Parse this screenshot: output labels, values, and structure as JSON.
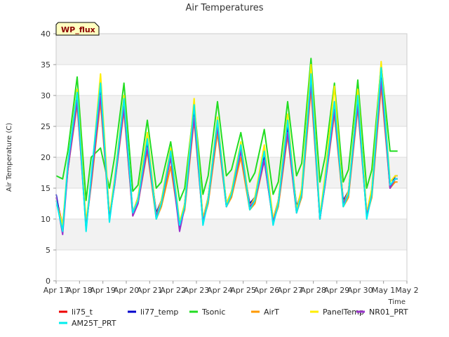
{
  "chart_data": {
    "type": "line",
    "title": "Air Temperatures",
    "ylabel": "Air Temperature (C)",
    "xlabel": "Time",
    "badge": "WP_flux",
    "ylim": [
      0,
      40
    ],
    "yticks": [
      0,
      5,
      10,
      15,
      20,
      25,
      30,
      35,
      40
    ],
    "xlim": [
      0,
      15
    ],
    "xticks": [
      {
        "day": 0,
        "label": "Apr 17"
      },
      {
        "day": 1,
        "label": "Apr 18"
      },
      {
        "day": 2,
        "label": "Apr 19"
      },
      {
        "day": 3,
        "label": "Apr 20"
      },
      {
        "day": 4,
        "label": "Apr 21"
      },
      {
        "day": 5,
        "label": "Apr 22"
      },
      {
        "day": 6,
        "label": "Apr 23"
      },
      {
        "day": 7,
        "label": "Apr 24"
      },
      {
        "day": 8,
        "label": "Apr 25"
      },
      {
        "day": 9,
        "label": "Apr 26"
      },
      {
        "day": 10,
        "label": "Apr 27"
      },
      {
        "day": 11,
        "label": "Apr 28"
      },
      {
        "day": 12,
        "label": "Apr 29"
      },
      {
        "day": 13,
        "label": "Apr 30"
      },
      {
        "day": 14,
        "label": "May 1"
      },
      {
        "day": 15,
        "label": "May 2"
      }
    ],
    "grid": true,
    "legend_position": "bottom",
    "series": [
      {
        "name": "li75_t",
        "color": "#ee0000",
        "x": [
          0.0,
          0.28,
          0.5,
          0.9,
          1.28,
          1.5,
          1.9,
          2.28,
          2.5,
          2.9,
          3.28,
          3.5,
          3.9,
          4.28,
          4.5,
          4.9,
          5.28,
          5.5,
          5.9,
          6.28,
          6.5,
          6.9,
          7.28,
          7.5,
          7.9,
          8.28,
          8.5,
          8.9,
          9.28,
          9.5,
          9.9,
          10.28,
          10.5,
          10.9,
          11.28,
          11.5,
          11.9,
          12.28,
          12.5,
          12.9,
          13.28,
          13.5,
          13.9,
          14.28,
          14.5,
          14.6
        ],
        "y": [
          13.5,
          9.0,
          18.0,
          29.5,
          9.0,
          16.0,
          31.0,
          10.5,
          16.0,
          28.5,
          11.0,
          13.0,
          22.0,
          10.5,
          12.5,
          20.0,
          9.0,
          12.0,
          27.0,
          9.5,
          13.0,
          25.0,
          12.0,
          14.0,
          21.5,
          12.0,
          13.0,
          20.0,
          10.0,
          12.5,
          24.5,
          11.5,
          14.0,
          33.0,
          10.0,
          16.0,
          28.5,
          12.5,
          14.0,
          29.0,
          10.5,
          14.0,
          33.5,
          15.0,
          16.5,
          16.5
        ]
      },
      {
        "name": "li77_temp",
        "color": "#0000cc",
        "x": [
          0.0,
          0.28,
          0.5,
          0.9,
          1.28,
          1.5,
          1.9,
          2.28,
          2.5,
          2.9,
          3.28,
          3.5,
          3.9,
          4.28,
          4.5,
          4.9,
          5.28,
          5.5,
          5.9,
          6.28,
          6.5,
          6.9,
          7.28,
          7.5,
          7.9,
          8.28,
          8.5,
          8.9,
          9.28,
          9.5,
          9.9,
          10.28,
          10.5,
          10.9,
          11.28,
          11.5,
          11.9,
          12.28,
          12.5,
          12.9,
          13.28,
          13.5,
          13.9,
          14.28,
          14.5,
          14.6
        ],
        "y": [
          14.0,
          8.0,
          18.5,
          30.5,
          8.5,
          16.5,
          31.5,
          10.0,
          16.0,
          29.0,
          11.0,
          13.5,
          22.5,
          11.0,
          13.0,
          20.5,
          8.5,
          12.5,
          27.5,
          10.0,
          13.5,
          25.5,
          12.5,
          14.5,
          21.0,
          12.5,
          13.5,
          20.0,
          10.0,
          13.0,
          25.0,
          12.0,
          14.5,
          33.5,
          10.0,
          16.5,
          28.0,
          13.0,
          14.5,
          29.5,
          11.0,
          14.5,
          34.0,
          15.0,
          17.0,
          17.0
        ]
      },
      {
        "name": "Tsonic",
        "color": "#22dd22",
        "x": [
          0.0,
          0.28,
          0.5,
          0.9,
          1.28,
          1.5,
          1.9,
          2.28,
          2.5,
          2.9,
          3.28,
          3.5,
          3.9,
          4.28,
          4.5,
          4.9,
          5.28,
          5.5,
          5.9,
          6.28,
          6.5,
          6.9,
          7.28,
          7.5,
          7.9,
          8.28,
          8.5,
          8.9,
          9.28,
          9.5,
          9.9,
          10.28,
          10.5,
          10.9,
          11.28,
          11.5,
          11.9,
          12.28,
          12.5,
          12.9,
          13.28,
          13.5,
          13.9,
          14.28,
          14.5,
          14.6
        ],
        "y": [
          17.0,
          16.5,
          21.0,
          33.0,
          13.0,
          20.0,
          21.5,
          15.0,
          20.0,
          32.0,
          14.5,
          15.5,
          26.0,
          15.0,
          16.0,
          22.5,
          13.0,
          15.0,
          28.5,
          14.0,
          17.0,
          29.0,
          17.0,
          18.0,
          24.0,
          16.0,
          17.5,
          24.5,
          14.0,
          16.0,
          29.0,
          17.0,
          19.0,
          36.0,
          16.0,
          20.0,
          32.0,
          16.0,
          18.0,
          32.5,
          15.0,
          18.0,
          35.0,
          21.0,
          21.0,
          21.0
        ]
      },
      {
        "name": "AirT",
        "color": "#ff9900",
        "x": [
          0.0,
          0.28,
          0.5,
          0.9,
          1.28,
          1.5,
          1.9,
          2.28,
          2.5,
          2.9,
          3.28,
          3.5,
          3.9,
          4.28,
          4.5,
          4.9,
          5.28,
          5.5,
          5.9,
          6.28,
          6.5,
          6.9,
          7.28,
          7.5,
          7.9,
          8.28,
          8.5,
          8.9,
          9.28,
          9.5,
          9.9,
          10.28,
          10.5,
          10.9,
          11.28,
          11.5,
          11.9,
          12.28,
          12.5,
          12.9,
          13.28,
          13.5,
          13.9,
          14.28,
          14.5,
          14.6
        ],
        "y": [
          13.0,
          8.5,
          18.0,
          28.5,
          9.0,
          15.5,
          29.0,
          10.0,
          15.5,
          27.5,
          10.5,
          12.5,
          21.0,
          10.0,
          12.0,
          18.5,
          9.0,
          11.5,
          26.0,
          9.5,
          12.5,
          24.0,
          12.0,
          13.5,
          20.0,
          11.5,
          12.5,
          19.5,
          9.5,
          12.0,
          23.5,
          11.0,
          13.5,
          31.0,
          10.0,
          15.5,
          27.0,
          12.0,
          13.5,
          28.0,
          10.5,
          13.5,
          31.5,
          15.0,
          16.0,
          16.0
        ]
      },
      {
        "name": "PanelTemp",
        "color": "#ffee00",
        "x": [
          0.0,
          0.28,
          0.5,
          0.9,
          1.28,
          1.5,
          1.9,
          2.28,
          2.5,
          2.9,
          3.28,
          3.5,
          3.9,
          4.28,
          4.5,
          4.9,
          5.28,
          5.5,
          5.9,
          6.28,
          6.5,
          6.9,
          7.28,
          7.5,
          7.9,
          8.28,
          8.5,
          8.9,
          9.28,
          9.5,
          9.9,
          10.28,
          10.5,
          10.9,
          11.28,
          11.5,
          11.9,
          12.28,
          12.5,
          12.9,
          13.28,
          13.5,
          13.9,
          14.28,
          14.5,
          14.6
        ],
        "y": [
          13.0,
          9.0,
          19.0,
          31.0,
          9.5,
          16.5,
          33.5,
          10.5,
          16.5,
          30.0,
          11.0,
          13.5,
          24.0,
          10.5,
          13.0,
          21.5,
          9.5,
          12.5,
          29.5,
          10.0,
          13.5,
          26.5,
          12.5,
          14.5,
          22.5,
          12.0,
          13.5,
          22.0,
          10.0,
          13.0,
          27.0,
          11.5,
          15.0,
          35.0,
          10.5,
          17.0,
          31.5,
          12.5,
          14.5,
          31.0,
          11.0,
          15.0,
          35.5,
          16.0,
          17.0,
          17.0
        ]
      },
      {
        "name": "NR01_PRT",
        "color": "#9933cc",
        "x": [
          0.0,
          0.28,
          0.5,
          0.9,
          1.28,
          1.5,
          1.9,
          2.28,
          2.5,
          2.9,
          3.28,
          3.5,
          3.9,
          4.28,
          4.5,
          4.9,
          5.28,
          5.5,
          5.9,
          6.28,
          6.5,
          6.9,
          7.28,
          7.5,
          7.9,
          8.28,
          8.5,
          8.9,
          9.28,
          9.5,
          9.9,
          10.28,
          10.5,
          10.9,
          11.28,
          11.5,
          11.9,
          12.28,
          12.5,
          12.9,
          13.28,
          13.5,
          13.9,
          14.28,
          14.5,
          14.6
        ],
        "y": [
          13.5,
          7.5,
          18.0,
          29.0,
          8.5,
          16.0,
          30.0,
          10.0,
          15.5,
          28.0,
          10.5,
          12.5,
          21.5,
          10.5,
          12.5,
          20.0,
          8.0,
          12.0,
          26.5,
          9.5,
          13.0,
          25.0,
          12.0,
          14.0,
          21.0,
          12.0,
          13.0,
          19.5,
          9.5,
          12.5,
          24.0,
          11.0,
          14.0,
          32.0,
          10.0,
          15.5,
          27.5,
          12.5,
          14.0,
          28.5,
          10.5,
          14.0,
          32.5,
          15.0,
          16.5,
          16.5
        ]
      },
      {
        "name": "AM25T_PRT",
        "color": "#00eeee",
        "x": [
          0.0,
          0.28,
          0.5,
          0.9,
          1.28,
          1.5,
          1.9,
          2.28,
          2.5,
          2.9,
          3.28,
          3.5,
          3.9,
          4.28,
          4.5,
          4.9,
          5.28,
          5.5,
          5.9,
          6.28,
          6.5,
          6.9,
          7.28,
          7.5,
          7.9,
          8.28,
          8.5,
          8.9,
          9.28,
          9.5,
          9.9,
          10.28,
          10.5,
          10.9,
          11.28,
          11.5,
          11.9,
          12.28,
          12.5,
          12.9,
          13.28,
          13.5,
          13.9,
          14.28,
          14.5,
          14.6
        ],
        "y": [
          13.0,
          8.0,
          19.0,
          30.5,
          8.0,
          17.0,
          32.0,
          9.5,
          16.0,
          29.5,
          11.0,
          13.0,
          23.0,
          10.0,
          12.5,
          21.0,
          9.0,
          12.0,
          28.5,
          9.0,
          13.0,
          26.0,
          12.0,
          14.0,
          22.0,
          11.5,
          13.0,
          21.0,
          9.0,
          12.5,
          26.0,
          11.0,
          14.0,
          33.5,
          10.0,
          16.0,
          29.0,
          12.0,
          14.0,
          30.0,
          10.0,
          14.0,
          34.5,
          15.5,
          16.5,
          16.5
        ]
      }
    ]
  }
}
